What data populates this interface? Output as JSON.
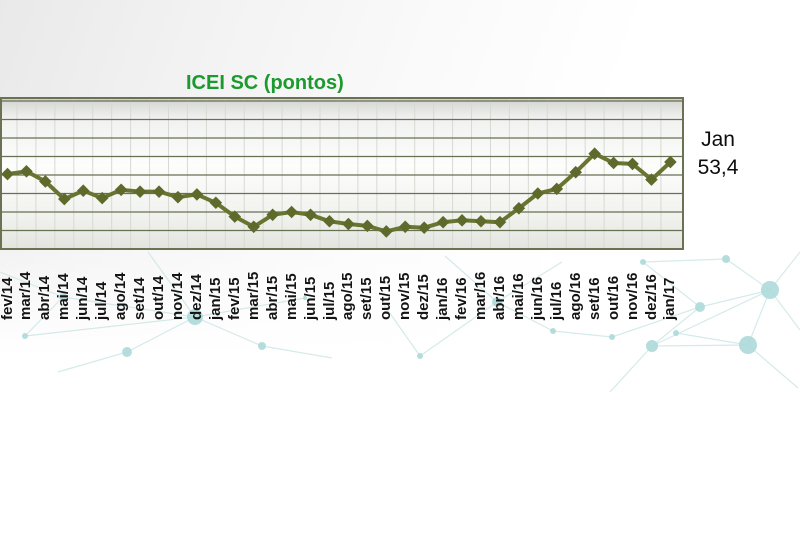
{
  "chart": {
    "title": "ICEI SC (pontos)",
    "annotation": {
      "month": "Jan",
      "value": "53,4"
    }
  },
  "chart_data": {
    "type": "line",
    "title": "ICEI SC (pontos)",
    "x": [
      "fev/14",
      "mar/14",
      "abr/14",
      "mai/14",
      "jun/14",
      "jul/14",
      "ago/14",
      "set/14",
      "out/14",
      "nov/14",
      "dez/14",
      "jan/15",
      "fev/15",
      "mar/15",
      "abr/15",
      "mai/15",
      "jun/15",
      "jul/15",
      "ago/15",
      "set/15",
      "out/15",
      "nov/15",
      "dez/15",
      "jan/16",
      "fev/16",
      "mar/16",
      "abr/16",
      "mai/16",
      "jun/16",
      "jul/16",
      "ago/16",
      "set/16",
      "out/16",
      "nov/16",
      "dez/16",
      "jan/17"
    ],
    "series": [
      {
        "name": "ICEI SC",
        "values": [
          52.1,
          52.4,
          51.3,
          49.4,
          50.3,
          49.5,
          50.4,
          50.2,
          50.2,
          49.6,
          49.9,
          49.0,
          47.5,
          46.4,
          47.7,
          48.0,
          47.7,
          47.0,
          46.7,
          46.5,
          45.9,
          46.4,
          46.3,
          46.9,
          47.1,
          47.0,
          46.9,
          48.4,
          50.0,
          50.5,
          52.3,
          54.3,
          53.3,
          53.2,
          51.5,
          53.4
        ]
      }
    ],
    "ylim": [
      44,
      60
    ],
    "gridline_step": 2,
    "grid": "both",
    "legend_position": "none",
    "annotation_last_point": "Jan 53,4",
    "xlabel": "",
    "ylabel": ""
  },
  "colors": {
    "line": "#68742f",
    "marker": "#5e6a2b",
    "grid_horizontal": "#667053",
    "grid_vertical": "#d7dad2",
    "plot_border": "#6b7254",
    "title": "#1c9a2f",
    "axis_label_text": "#141414",
    "annotation_text": "#0d0d0d",
    "watermark": "#bfe1e1"
  }
}
